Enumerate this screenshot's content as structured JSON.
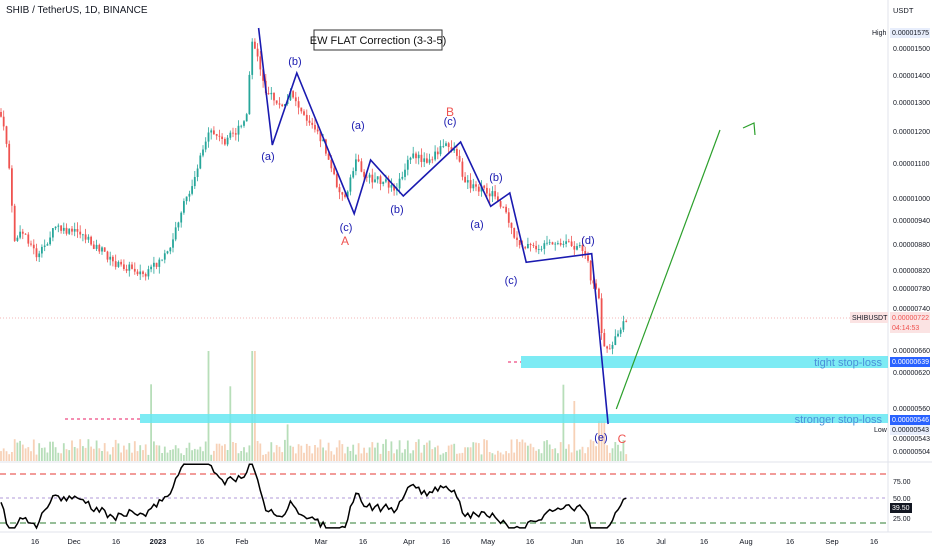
{
  "header": {
    "title": "SHIB / TetherUS, 1D, BINANCE"
  },
  "price_axis": {
    "unit": "USDT",
    "ticks": [
      "0.00001500",
      "0.00001400",
      "0.00001300",
      "0.00001200",
      "0.00001100",
      "0.00001000",
      "0.00000940",
      "0.00000880",
      "0.00000820",
      "0.00000780",
      "0.00000740",
      "0.00000660",
      "0.00000620",
      "0.00000560",
      "0.00000543",
      "0.00000504"
    ],
    "high_label": "High",
    "high_value": "0.00001575",
    "low_label": "Low",
    "low_value": "0.00000543",
    "symbol_label": "SHIBUSDT",
    "last_price": "0.00000722",
    "countdown": "04:14:53",
    "tight_level": "0.00000639",
    "strong_level": "0.00000546"
  },
  "rsi_axis": {
    "ticks": [
      "75.00",
      "50.00",
      "25.00"
    ],
    "value": "39.50"
  },
  "time_axis": {
    "labels": [
      "16",
      "Dec",
      "16",
      "2023",
      "16",
      "Feb",
      "Mar",
      "16",
      "Apr",
      "16",
      "May",
      "16",
      "Jun",
      "16",
      "Jul",
      "16",
      "Aug",
      "16",
      "Sep",
      "16"
    ]
  },
  "annotations": {
    "pattern_title": "EW FLAT Correction (3-3-5)",
    "tight_stop": "tight stop-loss",
    "strong_stop": "stronger stop-loss",
    "waves": {
      "a1": "(a)",
      "b1": "(b)",
      "c1": "(c)",
      "A": "A",
      "a2": "(a)",
      "b2": "(b)",
      "c2": "(c)",
      "B": "B",
      "a3": "(a)",
      "b3": "(b)",
      "c3": "(c)",
      "d3": "(d)",
      "e3": "(e)",
      "C": "C"
    }
  },
  "colors": {
    "up": "#26a69a",
    "down": "#ef5350",
    "wave": "#1a1ab0",
    "forecast": "#2ca02c",
    "zone": "#66e8f2",
    "rsi_red": "#e53935",
    "rsi_green": "#2e7d32",
    "label_blue": "#2962ff",
    "label_red": "#ef5350"
  },
  "chart_data": {
    "type": "candlestick",
    "title": "SHIB / TetherUS, 1D, BINANCE",
    "xlabel": "",
    "ylabel": "USDT",
    "ylim": [
      5e-06,
      1.6e-05
    ],
    "wave_path": [
      {
        "label": "",
        "date": "2023-02-03",
        "price": 1.57e-05
      },
      {
        "label": "(a)",
        "date": "2023-02-08",
        "price": 1.18e-05
      },
      {
        "label": "(b)",
        "date": "2023-02-17",
        "price": 1.42e-05
      },
      {
        "label": "(c) A",
        "date": "2023-03-10",
        "price": 9.6e-06
      },
      {
        "label": "(a)",
        "date": "2023-03-16",
        "price": 1.13e-05
      },
      {
        "label": "(b)",
        "date": "2023-03-28",
        "price": 1.01e-05
      },
      {
        "label": "(c) B",
        "date": "2023-04-18",
        "price": 1.19e-05
      },
      {
        "label": "(a)",
        "date": "2023-04-29",
        "price": 9.8e-06
      },
      {
        "label": "(b)",
        "date": "2023-05-06",
        "price": 1.02e-05
      },
      {
        "label": "(c)",
        "date": "2023-05-12",
        "price": 8.4e-06
      },
      {
        "label": "(d)",
        "date": "2023-06-05",
        "price": 8.6e-06
      },
      {
        "label": "(e) C",
        "date": "2023-06-11",
        "price": 5.4e-06
      }
    ],
    "forecast_path": [
      {
        "date": "2023-06-14",
        "price": 5.6e-06
      },
      {
        "date": "2023-07-22",
        "price": 1.23e-05
      }
    ],
    "levels": {
      "tight_stop": 6.39e-06,
      "stronger_stop": 5.46e-06,
      "last": 7.22e-06,
      "high": 1.575e-05,
      "low": 5.43e-06
    },
    "rsi": {
      "upper": 75,
      "mid": 50,
      "lower": 25,
      "last": 39.5
    }
  }
}
